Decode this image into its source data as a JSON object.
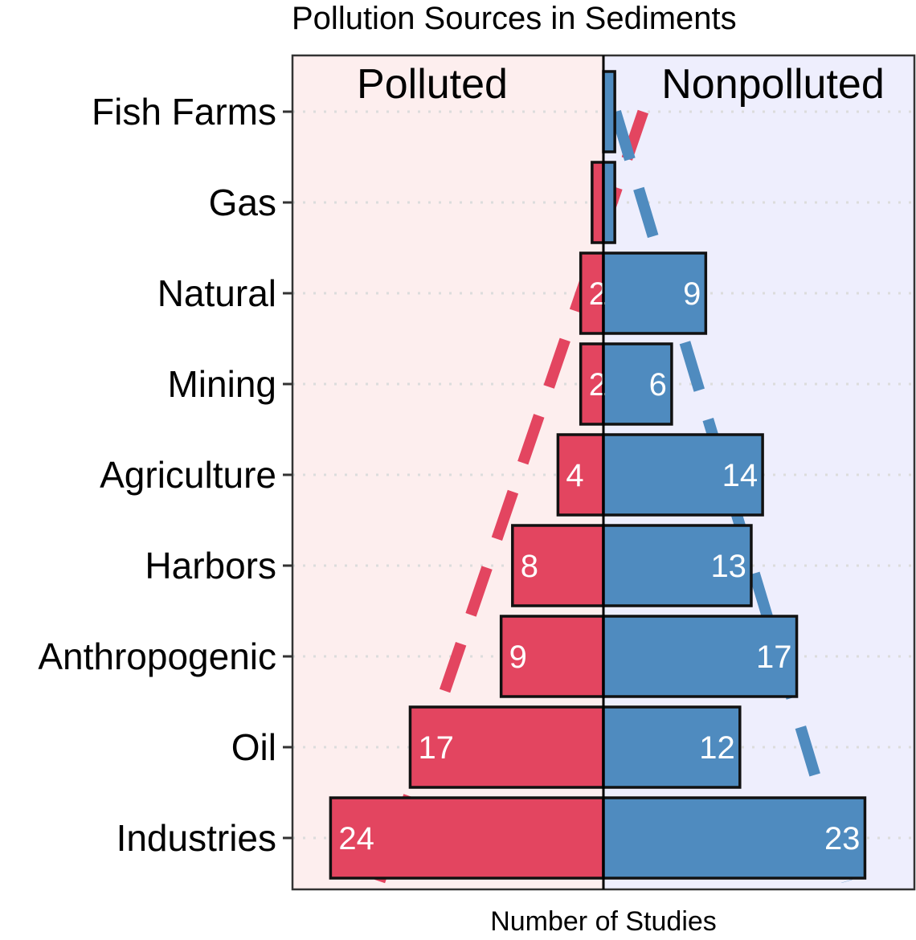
{
  "chart_data": {
    "type": "bar",
    "title": "Pollution Sources in Sediments",
    "xlabel": "Number of Studies",
    "ylabel": "",
    "categories": [
      "Fish Farms",
      "Gas",
      "Natural",
      "Mining",
      "Agriculture",
      "Harbors",
      "Anthropogenic",
      "Oil",
      "Industries"
    ],
    "series": [
      {
        "name": "Polluted",
        "color": "#E34560",
        "values": [
          0,
          1,
          2,
          2,
          4,
          8,
          9,
          17,
          24
        ],
        "labels": [
          "",
          "",
          "2",
          "2",
          "4",
          "8",
          "9",
          "17",
          "24"
        ]
      },
      {
        "name": "Nonpolluted",
        "color": "#4F8BBF",
        "values": [
          1,
          1,
          9,
          6,
          14,
          13,
          17,
          12,
          23
        ],
        "labels": [
          "",
          "",
          "9",
          "6",
          "14",
          "13",
          "17",
          "12",
          "23"
        ]
      }
    ],
    "xlim": [
      -24.5,
      27.5
    ],
    "panel_colors": {
      "left": "#FDEEEE",
      "right": "#EEEEFD"
    },
    "gridlines": "dotted horizontal",
    "trend_lines": "dashed, one per series"
  }
}
